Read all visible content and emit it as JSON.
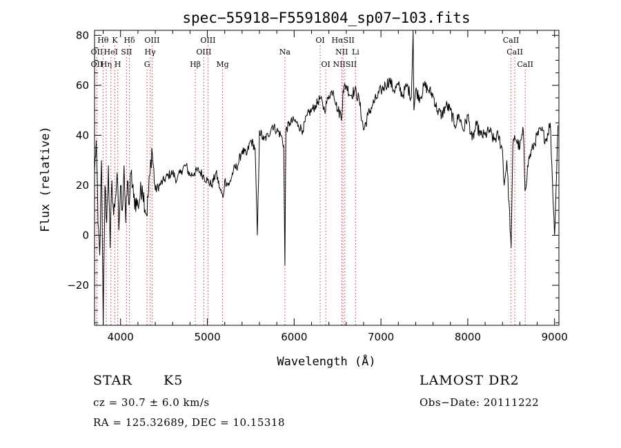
{
  "chart_data": {
    "type": "line",
    "title": "spec−55918−F5591804_sp07−103.fits",
    "xlabel": "Wavelength (Å)",
    "ylabel": "Flux (relative)",
    "xlim": [
      3700,
      9050
    ],
    "ylim": [
      -36,
      82
    ],
    "xticks": [
      4000,
      5000,
      6000,
      7000,
      8000,
      9000
    ],
    "yticks": [
      -20,
      0,
      20,
      40,
      60,
      80
    ],
    "grid": false,
    "line_color": "#000000",
    "marker_color": "#cc3333",
    "series": [
      {
        "x": [
          3700,
          3720,
          3740,
          3760,
          3780,
          3800,
          3820,
          3840,
          3860,
          3880,
          3900,
          3920,
          3940,
          3960,
          3980,
          4000,
          4020,
          4040,
          4060,
          4080,
          4100,
          4120,
          4150,
          4200,
          4250,
          4300,
          4340,
          4360,
          4400,
          4450,
          4500,
          4550,
          4600,
          4650,
          4700,
          4750,
          4800,
          4850,
          4900,
          4950,
          5000,
          5050,
          5100,
          5150,
          5180,
          5200,
          5250,
          5300,
          5350,
          5400,
          5450,
          5500,
          5550,
          5575,
          5590,
          5600,
          5650,
          5700,
          5750,
          5800,
          5850,
          5880,
          5893,
          5905,
          5950,
          6000,
          6050,
          6100,
          6150,
          6200,
          6250,
          6300,
          6350,
          6400,
          6450,
          6500,
          6550,
          6563,
          6600,
          6650,
          6700,
          6750,
          6800,
          6850,
          6900,
          6950,
          7000,
          7050,
          7100,
          7150,
          7200,
          7250,
          7300,
          7350,
          7370,
          7380,
          7400,
          7450,
          7500,
          7550,
          7600,
          7650,
          7700,
          7750,
          7800,
          7850,
          7900,
          7950,
          8000,
          8050,
          8100,
          8150,
          8200,
          8250,
          8300,
          8350,
          8400,
          8420,
          8450,
          8500,
          8520,
          8540,
          8560,
          8600,
          8640,
          8660,
          8700,
          8750,
          8800,
          8850,
          8900,
          8950,
          9000,
          9040
        ],
        "y": [
          25,
          38,
          5,
          -8,
          30,
          -36,
          20,
          5,
          28,
          -5,
          22,
          8,
          15,
          25,
          2,
          20,
          10,
          28,
          5,
          22,
          12,
          25,
          15,
          12,
          20,
          8,
          25,
          35,
          18,
          20,
          22,
          24,
          25,
          22,
          26,
          28,
          24,
          25,
          26,
          24,
          22,
          20,
          25,
          18,
          15,
          22,
          20,
          26,
          28,
          34,
          32,
          38,
          35,
          0,
          22,
          42,
          38,
          40,
          44,
          42,
          40,
          36,
          -12,
          42,
          45,
          46,
          44,
          42,
          48,
          50,
          52,
          55,
          50,
          56,
          58,
          50,
          48,
          58,
          60,
          56,
          58,
          54,
          42,
          48,
          52,
          55,
          58,
          60,
          62,
          58,
          60,
          56,
          60,
          55,
          82,
          50,
          58,
          55,
          60,
          58,
          56,
          50,
          48,
          52,
          50,
          44,
          48,
          42,
          48,
          38,
          44,
          40,
          40,
          42,
          38,
          40,
          34,
          20,
          30,
          -5,
          36,
          40,
          38,
          35,
          42,
          18,
          30,
          35,
          40,
          42,
          38,
          45,
          0,
          44
        ]
      }
    ],
    "line_markers": [
      {
        "label": "Hθ",
        "x": 3798,
        "row": 1
      },
      {
        "label": "K",
        "x": 3934,
        "row": 1
      },
      {
        "label": "Hδ",
        "x": 4102,
        "row": 1
      },
      {
        "label": "OIII",
        "x": 4363,
        "row": 1
      },
      {
        "label": "OIII",
        "x": 5007,
        "row": 1
      },
      {
        "label": "OI",
        "x": 6300,
        "row": 1
      },
      {
        "label": "HαSII",
        "x": 6563,
        "row": 1
      },
      {
        "label": "CaII",
        "x": 8498,
        "row": 1
      },
      {
        "label": "OII",
        "x": 3727,
        "row": 2
      },
      {
        "label": "HeI",
        "x": 3889,
        "row": 2
      },
      {
        "label": "SII",
        "x": 4069,
        "row": 2
      },
      {
        "label": "Hγ",
        "x": 4341,
        "row": 2
      },
      {
        "label": "OIII",
        "x": 4959,
        "row": 2
      },
      {
        "label": "Na",
        "x": 5893,
        "row": 2
      },
      {
        "label": "NII",
        "x": 6548,
        "row": 2
      },
      {
        "label": "Li",
        "x": 6708,
        "row": 2
      },
      {
        "label": "CaII",
        "x": 8542,
        "row": 2
      },
      {
        "label": "OII",
        "x": 3727,
        "row": 3
      },
      {
        "label": "Hη",
        "x": 3835,
        "row": 3
      },
      {
        "label": "H",
        "x": 3968,
        "row": 3
      },
      {
        "label": "G",
        "x": 4305,
        "row": 3
      },
      {
        "label": "Hβ",
        "x": 4861,
        "row": 3
      },
      {
        "label": "Mg",
        "x": 5175,
        "row": 3
      },
      {
        "label": "OI",
        "x": 6364,
        "row": 3
      },
      {
        "label": "NIISII",
        "x": 6584,
        "row": 3
      },
      {
        "label": "CaII",
        "x": 8662,
        "row": 3
      }
    ]
  },
  "info": {
    "object_class": "STAR",
    "subclass": "K5",
    "survey": "LAMOST DR2",
    "redshift": "cz = 30.7 ± 6.0 km/s",
    "obs_date": "Obs−Date: 20111222",
    "coords": "RA = 125.32689, DEC =  10.15318"
  }
}
